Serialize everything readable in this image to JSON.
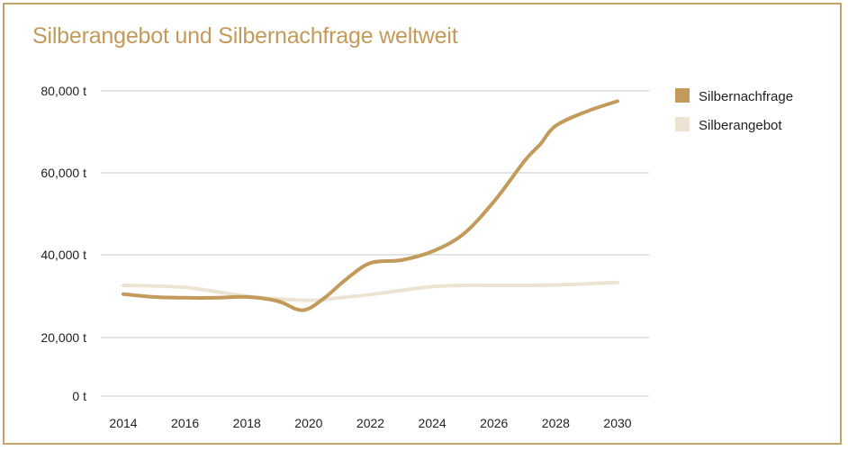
{
  "chart_data": {
    "type": "line",
    "title": "Silberangebot und Silbernachfrage weltweit",
    "xlabel": "",
    "ylabel": "",
    "x_ticks": [
      "2014",
      "2016",
      "2018",
      "2020",
      "2022",
      "2024",
      "2026",
      "2028",
      "2030"
    ],
    "y_ticks": [
      "80,000 t",
      "60,000 t",
      "40,000 t",
      "20,000 t",
      "0 t"
    ],
    "y_tick_values": [
      80000,
      60000,
      40000,
      20000,
      0
    ],
    "ylim": [
      0,
      80000
    ],
    "xlim": [
      2014,
      2030
    ],
    "grid": true,
    "legend_position": "right",
    "series": [
      {
        "name": "Silbernachfrage",
        "color": "#c29a5b",
        "x": [
          2014,
          2015,
          2016,
          2017,
          2018,
          2019,
          2019.8,
          2020.5,
          2021.2,
          2022,
          2023,
          2024,
          2025,
          2026,
          2027,
          2027.5,
          2028,
          2029,
          2030
        ],
        "values": [
          30500,
          29800,
          29600,
          29600,
          29800,
          28800,
          26600,
          29500,
          34000,
          38000,
          38700,
          40800,
          45000,
          53000,
          63000,
          67000,
          71500,
          75000,
          77500
        ]
      },
      {
        "name": "Silberangebot",
        "color": "#ede3d2",
        "x": [
          2014,
          2016,
          2018,
          2020,
          2021,
          2022,
          2023,
          2024,
          2025,
          2026,
          2027,
          2028,
          2029,
          2030
        ],
        "values": [
          32600,
          32100,
          30000,
          29000,
          29600,
          30400,
          31400,
          32300,
          32600,
          32600,
          32600,
          32700,
          33000,
          33300
        ]
      }
    ]
  }
}
